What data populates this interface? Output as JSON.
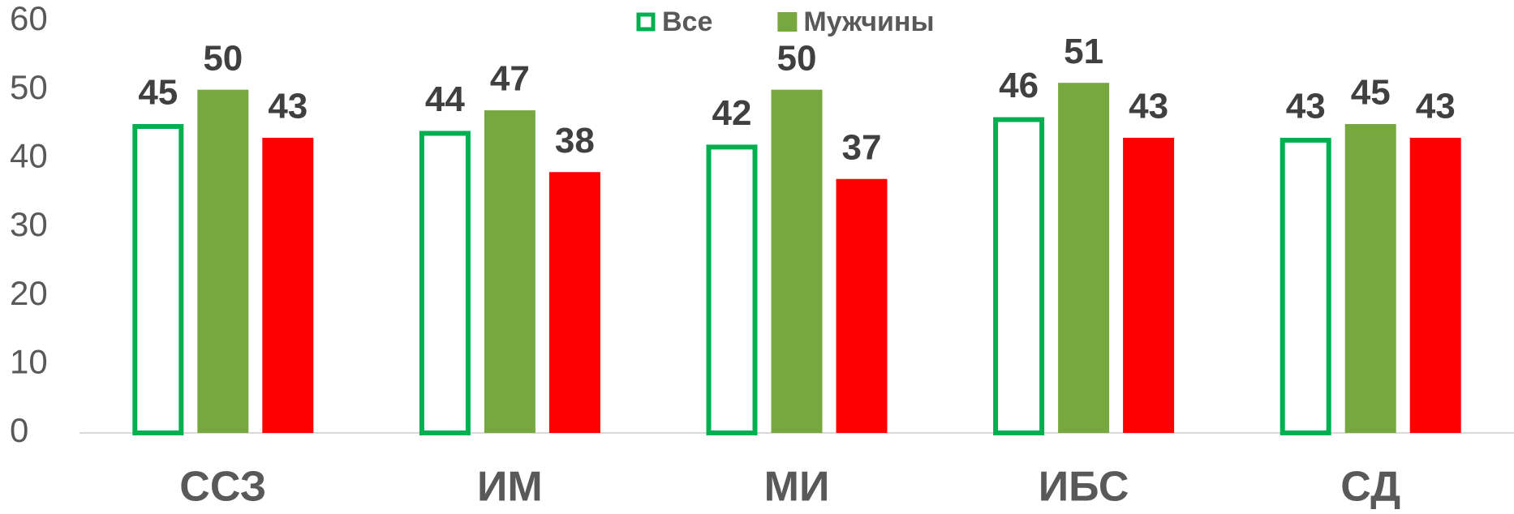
{
  "chart_data": {
    "type": "bar",
    "categories": [
      "ССЗ",
      "ИМ",
      "МИ",
      "ИБС",
      "СД"
    ],
    "series": [
      {
        "name": "Все",
        "color": "#00b050",
        "style": "outline",
        "values": [
          45,
          44,
          42,
          46,
          43
        ]
      },
      {
        "name": "Мужчины",
        "color": "#77a83f",
        "values": [
          50,
          47,
          50,
          51,
          45
        ]
      },
      {
        "color": "#ff0000",
        "values": [
          43,
          38,
          37,
          43,
          43
        ]
      }
    ],
    "ylim": [
      0,
      60
    ],
    "yticks": [
      0,
      10,
      20,
      30,
      40,
      50,
      60
    ],
    "grid": false,
    "legend": "top"
  }
}
